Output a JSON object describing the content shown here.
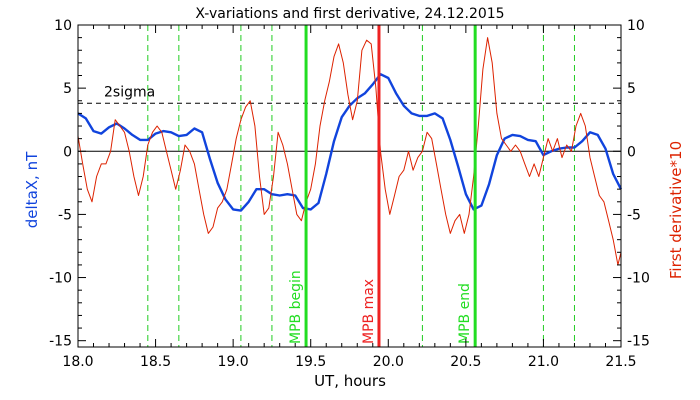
{
  "chart_data": {
    "type": "line",
    "title": "X-variations and first derivative, 24.12.2015",
    "xlabel": "UT, hours",
    "ylabel_left": "deltaX, nT",
    "ylabel_right": "First derivative*10",
    "xlim": [
      18.0,
      21.5
    ],
    "ylim": [
      -15.5,
      10
    ],
    "xticks": [
      "18.0",
      "18.5",
      "19.0",
      "19.5",
      "20.0",
      "20.5",
      "21.0",
      "21.5"
    ],
    "yticks": [
      "10",
      "5",
      "0",
      "-5",
      "-10",
      "-15"
    ],
    "threshold": {
      "label": "2sigma",
      "value": 3.8
    },
    "dashed_verticals": [
      18.45,
      18.65,
      19.05,
      19.25,
      20.22,
      21.0,
      21.2
    ],
    "markers": [
      {
        "label": "MPB begin",
        "x": 19.47,
        "color": "#22dd22"
      },
      {
        "label": "MPB max",
        "x": 19.94,
        "color": "#ee2222"
      },
      {
        "label": "MPB end",
        "x": 20.56,
        "color": "#22dd22"
      }
    ],
    "series": [
      {
        "axis": "left",
        "color": "#1144dd",
        "points": [
          [
            18.0,
            3.0
          ],
          [
            18.05,
            2.6
          ],
          [
            18.1,
            1.6
          ],
          [
            18.15,
            1.4
          ],
          [
            18.2,
            1.9
          ],
          [
            18.25,
            2.2
          ],
          [
            18.3,
            1.8
          ],
          [
            18.35,
            1.3
          ],
          [
            18.4,
            0.9
          ],
          [
            18.45,
            0.9
          ],
          [
            18.5,
            1.4
          ],
          [
            18.55,
            1.6
          ],
          [
            18.6,
            1.5
          ],
          [
            18.65,
            1.2
          ],
          [
            18.7,
            1.3
          ],
          [
            18.75,
            1.8
          ],
          [
            18.8,
            1.5
          ],
          [
            18.85,
            -0.6
          ],
          [
            18.9,
            -2.5
          ],
          [
            18.95,
            -3.8
          ],
          [
            19.0,
            -4.6
          ],
          [
            19.05,
            -4.7
          ],
          [
            19.1,
            -4.0
          ],
          [
            19.15,
            -3.0
          ],
          [
            19.2,
            -3.0
          ],
          [
            19.25,
            -3.4
          ],
          [
            19.3,
            -3.5
          ],
          [
            19.35,
            -3.4
          ],
          [
            19.4,
            -3.5
          ],
          [
            19.45,
            -4.5
          ],
          [
            19.5,
            -4.6
          ],
          [
            19.55,
            -4.1
          ],
          [
            19.6,
            -1.8
          ],
          [
            19.65,
            0.8
          ],
          [
            19.7,
            2.7
          ],
          [
            19.75,
            3.6
          ],
          [
            19.8,
            4.2
          ],
          [
            19.85,
            4.6
          ],
          [
            19.9,
            5.3
          ],
          [
            19.95,
            6.1
          ],
          [
            20.0,
            5.8
          ],
          [
            20.05,
            4.6
          ],
          [
            20.1,
            3.6
          ],
          [
            20.15,
            3.0
          ],
          [
            20.2,
            2.8
          ],
          [
            20.25,
            2.8
          ],
          [
            20.3,
            3.0
          ],
          [
            20.35,
            2.6
          ],
          [
            20.4,
            0.9
          ],
          [
            20.45,
            -1.2
          ],
          [
            20.5,
            -3.4
          ],
          [
            20.55,
            -4.6
          ],
          [
            20.6,
            -4.3
          ],
          [
            20.65,
            -2.6
          ],
          [
            20.7,
            -0.3
          ],
          [
            20.75,
            1.0
          ],
          [
            20.8,
            1.3
          ],
          [
            20.85,
            1.2
          ],
          [
            20.9,
            0.9
          ],
          [
            20.95,
            0.8
          ],
          [
            21.0,
            -0.3
          ],
          [
            21.05,
            0.0
          ],
          [
            21.1,
            0.2
          ],
          [
            21.15,
            0.3
          ],
          [
            21.2,
            0.3
          ],
          [
            21.25,
            0.8
          ],
          [
            21.3,
            1.5
          ],
          [
            21.35,
            1.3
          ],
          [
            21.4,
            0.2
          ],
          [
            21.45,
            -1.8
          ],
          [
            21.5,
            -3.0
          ]
        ]
      },
      {
        "axis": "right",
        "color": "#dd2200",
        "points": [
          [
            18.0,
            1.2
          ],
          [
            18.03,
            -1.0
          ],
          [
            18.06,
            -3.0
          ],
          [
            18.09,
            -4.0
          ],
          [
            18.12,
            -2.0
          ],
          [
            18.15,
            -1.0
          ],
          [
            18.18,
            -1.0
          ],
          [
            18.21,
            0.0
          ],
          [
            18.24,
            2.5
          ],
          [
            18.27,
            2.0
          ],
          [
            18.3,
            1.5
          ],
          [
            18.33,
            0.0
          ],
          [
            18.36,
            -2.0
          ],
          [
            18.39,
            -3.5
          ],
          [
            18.42,
            -2.0
          ],
          [
            18.45,
            0.5
          ],
          [
            18.48,
            1.5
          ],
          [
            18.51,
            2.0
          ],
          [
            18.54,
            1.5
          ],
          [
            18.57,
            0.0
          ],
          [
            18.6,
            -1.5
          ],
          [
            18.63,
            -3.0
          ],
          [
            18.66,
            -1.5
          ],
          [
            18.69,
            0.5
          ],
          [
            18.72,
            0.0
          ],
          [
            18.75,
            -1.0
          ],
          [
            18.78,
            -3.0
          ],
          [
            18.81,
            -5.0
          ],
          [
            18.84,
            -6.5
          ],
          [
            18.87,
            -6.0
          ],
          [
            18.9,
            -4.5
          ],
          [
            18.93,
            -4.0
          ],
          [
            18.96,
            -3.0
          ],
          [
            18.99,
            -1.0
          ],
          [
            19.02,
            1.0
          ],
          [
            19.05,
            2.5
          ],
          [
            19.08,
            3.5
          ],
          [
            19.11,
            4.0
          ],
          [
            19.14,
            2.0
          ],
          [
            19.17,
            -2.0
          ],
          [
            19.2,
            -5.0
          ],
          [
            19.23,
            -4.5
          ],
          [
            19.26,
            -2.0
          ],
          [
            19.29,
            1.5
          ],
          [
            19.32,
            0.5
          ],
          [
            19.35,
            -1.0
          ],
          [
            19.38,
            -3.0
          ],
          [
            19.41,
            -5.0
          ],
          [
            19.44,
            -5.5
          ],
          [
            19.47,
            -4.0
          ],
          [
            19.5,
            -3.0
          ],
          [
            19.53,
            -1.0
          ],
          [
            19.56,
            2.0
          ],
          [
            19.59,
            4.0
          ],
          [
            19.62,
            5.5
          ],
          [
            19.65,
            7.5
          ],
          [
            19.68,
            8.5
          ],
          [
            19.71,
            7.0
          ],
          [
            19.74,
            4.5
          ],
          [
            19.77,
            2.5
          ],
          [
            19.8,
            4.0
          ],
          [
            19.83,
            8.0
          ],
          [
            19.86,
            8.8
          ],
          [
            19.89,
            8.5
          ],
          [
            19.92,
            5.0
          ],
          [
            19.95,
            0.0
          ],
          [
            19.98,
            -3.0
          ],
          [
            20.01,
            -5.0
          ],
          [
            20.04,
            -3.5
          ],
          [
            20.07,
            -2.0
          ],
          [
            20.1,
            -1.5
          ],
          [
            20.13,
            0.0
          ],
          [
            20.16,
            -1.5
          ],
          [
            20.19,
            -0.5
          ],
          [
            20.22,
            0.0
          ],
          [
            20.25,
            1.5
          ],
          [
            20.28,
            1.0
          ],
          [
            20.31,
            -1.0
          ],
          [
            20.34,
            -3.0
          ],
          [
            20.37,
            -5.0
          ],
          [
            20.4,
            -6.5
          ],
          [
            20.43,
            -5.5
          ],
          [
            20.46,
            -5.0
          ],
          [
            20.49,
            -6.5
          ],
          [
            20.52,
            -5.0
          ],
          [
            20.55,
            -2.0
          ],
          [
            20.58,
            2.0
          ],
          [
            20.61,
            6.5
          ],
          [
            20.64,
            9.0
          ],
          [
            20.67,
            7.0
          ],
          [
            20.7,
            3.0
          ],
          [
            20.73,
            1.0
          ],
          [
            20.76,
            0.5
          ],
          [
            20.79,
            0.0
          ],
          [
            20.82,
            0.5
          ],
          [
            20.85,
            0.0
          ],
          [
            20.88,
            -1.0
          ],
          [
            20.91,
            -2.0
          ],
          [
            20.94,
            -1.0
          ],
          [
            20.97,
            -2.0
          ],
          [
            21.0,
            -0.5
          ],
          [
            21.03,
            1.0
          ],
          [
            21.06,
            0.0
          ],
          [
            21.09,
            1.0
          ],
          [
            21.12,
            -0.5
          ],
          [
            21.15,
            0.5
          ],
          [
            21.18,
            0.0
          ],
          [
            21.21,
            2.0
          ],
          [
            21.24,
            3.0
          ],
          [
            21.27,
            2.0
          ],
          [
            21.3,
            -0.5
          ],
          [
            21.33,
            -2.0
          ],
          [
            21.36,
            -3.5
          ],
          [
            21.39,
            -4.0
          ],
          [
            21.42,
            -5.5
          ],
          [
            21.45,
            -7.0
          ],
          [
            21.48,
            -9.0
          ],
          [
            21.5,
            -8.0
          ]
        ]
      }
    ]
  }
}
